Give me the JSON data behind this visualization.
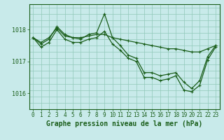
{
  "title": "Graphe pression niveau de la mer (hPa)",
  "bg_color": "#c8eaea",
  "grid_color": "#90c8b8",
  "line_color": "#1a5e1a",
  "yticks": [
    1016,
    1017,
    1018
  ],
  "ylim": [
    1015.5,
    1018.8
  ],
  "xlim": [
    -0.5,
    23.5
  ],
  "xticks": [
    0,
    1,
    2,
    3,
    4,
    5,
    6,
    7,
    8,
    9,
    10,
    11,
    12,
    13,
    14,
    15,
    16,
    17,
    18,
    19,
    20,
    21,
    22,
    23
  ],
  "series": [
    [
      1017.75,
      1017.6,
      1017.75,
      1018.05,
      1017.8,
      1017.75,
      1017.75,
      1017.8,
      1017.85,
      1017.85,
      1017.75,
      1017.7,
      1017.65,
      1017.6,
      1017.55,
      1017.5,
      1017.45,
      1017.4,
      1017.4,
      1017.35,
      1017.3,
      1017.3,
      1017.4,
      1017.5
    ],
    [
      1017.75,
      1017.55,
      1017.7,
      1018.1,
      1017.85,
      1017.75,
      1017.7,
      1017.85,
      1017.9,
      1018.5,
      1017.75,
      1017.5,
      1017.2,
      1017.1,
      1016.65,
      1016.65,
      1016.55,
      1016.6,
      1016.65,
      1016.35,
      1016.15,
      1016.4,
      1017.15,
      1017.5
    ],
    [
      1017.75,
      1017.45,
      1017.6,
      1018.0,
      1017.7,
      1017.6,
      1017.6,
      1017.7,
      1017.75,
      1017.95,
      1017.55,
      1017.35,
      1017.1,
      1017.0,
      1016.5,
      1016.5,
      1016.4,
      1016.45,
      1016.55,
      1016.1,
      1016.05,
      1016.25,
      1017.05,
      1017.45
    ]
  ],
  "tick_fontsize": 5.5,
  "xlabel_fontsize": 7
}
